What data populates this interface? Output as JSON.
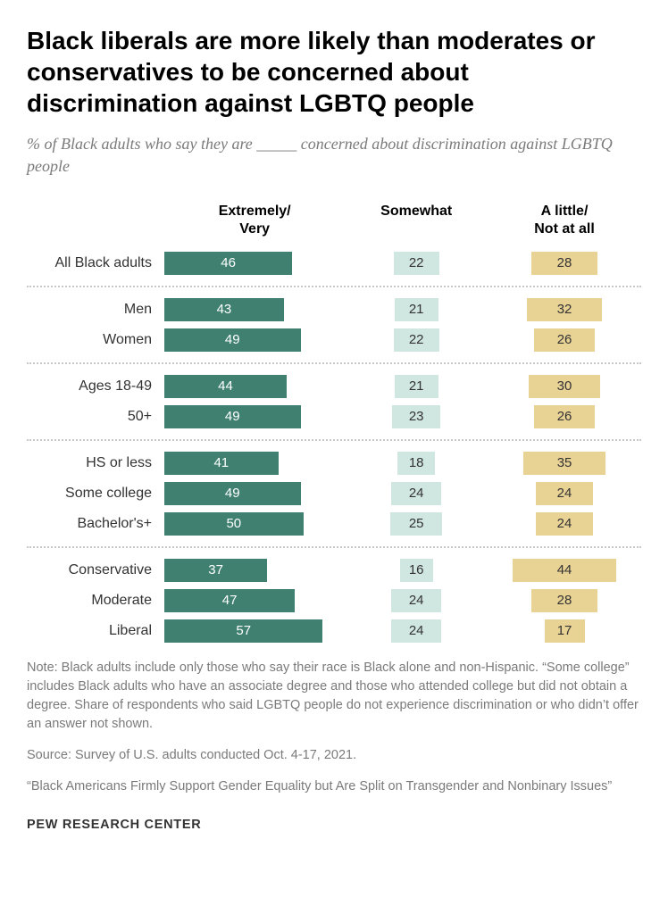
{
  "title": "Black liberals are more likely than moderates or conservatives to be concerned about discrimination against LGBTQ people",
  "subtitle_pre": "% of Black adults who say they are ",
  "subtitle_blank": "_____",
  "subtitle_post": " concerned about discrimination against LGBTQ people",
  "columns": {
    "extremely": "Extremely/\nVery",
    "somewhat": "Somewhat",
    "alittle": "A little/\nNot at all"
  },
  "colors": {
    "extremely": "#3f8070",
    "somewhat": "#d0e6e0",
    "alittle": "#e8d294",
    "extremely_text": "#ffffff",
    "other_text": "#333333",
    "background": "#ffffff",
    "divider": "#c8c8c8"
  },
  "scale": {
    "max": 65
  },
  "groups": [
    {
      "rows": [
        {
          "label": "All Black adults",
          "extremely": 46,
          "somewhat": 22,
          "alittle": 28
        }
      ]
    },
    {
      "rows": [
        {
          "label": "Men",
          "extremely": 43,
          "somewhat": 21,
          "alittle": 32
        },
        {
          "label": "Women",
          "extremely": 49,
          "somewhat": 22,
          "alittle": 26
        }
      ]
    },
    {
      "rows": [
        {
          "label": "Ages 18-49",
          "extremely": 44,
          "somewhat": 21,
          "alittle": 30
        },
        {
          "label": "50+",
          "extremely": 49,
          "somewhat": 23,
          "alittle": 26
        }
      ]
    },
    {
      "rows": [
        {
          "label": "HS or less",
          "extremely": 41,
          "somewhat": 18,
          "alittle": 35
        },
        {
          "label": "Some college",
          "extremely": 49,
          "somewhat": 24,
          "alittle": 24
        },
        {
          "label": "Bachelor's+",
          "extremely": 50,
          "somewhat": 25,
          "alittle": 24
        }
      ]
    },
    {
      "rows": [
        {
          "label": "Conservative",
          "extremely": 37,
          "somewhat": 16,
          "alittle": 44
        },
        {
          "label": "Moderate",
          "extremely": 47,
          "somewhat": 24,
          "alittle": 28
        },
        {
          "label": "Liberal",
          "extremely": 57,
          "somewhat": 24,
          "alittle": 17
        }
      ]
    }
  ],
  "note": "Note: Black adults include only those who say their race is Black alone and non-Hispanic. “Some college” includes Black adults who have an associate degree and those who attended college but did not obtain a degree. Share of respondents who said LGBTQ people do not experience discrimination or who didn’t offer an answer not shown.",
  "source": "Source: Survey of U.S. adults conducted Oct. 4-17, 2021.",
  "report": "“Black Americans Firmly Support Gender Equality but Are Split on Transgender and Nonbinary Issues”",
  "footer": "PEW RESEARCH CENTER"
}
